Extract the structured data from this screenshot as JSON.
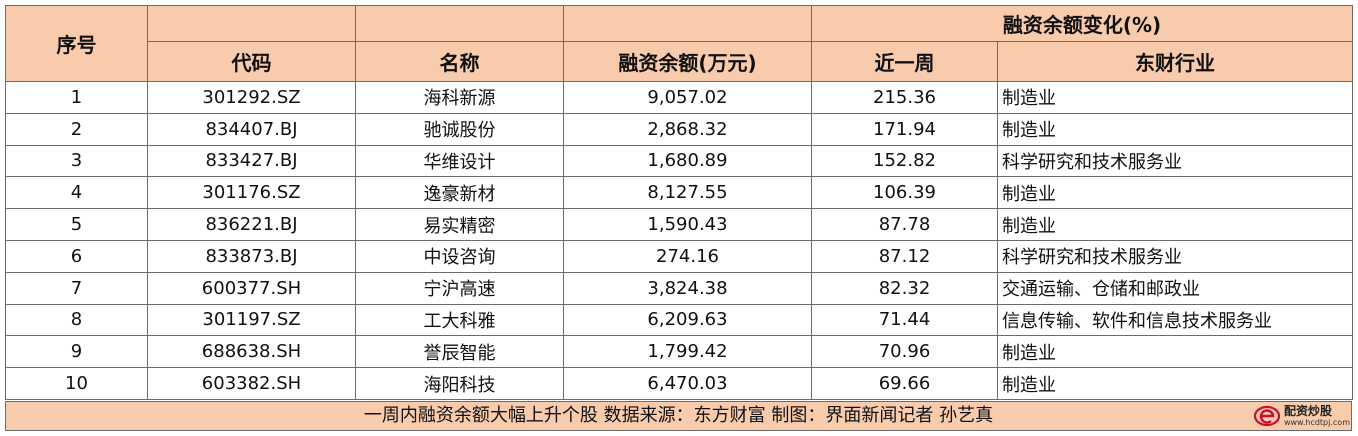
{
  "header": {
    "seq": "序号",
    "change_group": "融资余额变化(%)",
    "code": "代码",
    "name": "名称",
    "balance": "融资余额(万元)",
    "week": "近一周",
    "industry": "东财行业"
  },
  "rows": [
    {
      "seq": "1",
      "code": "301292.SZ",
      "name": "海科新源",
      "balance": "9,057.02",
      "week": "215.36",
      "industry": "制造业"
    },
    {
      "seq": "2",
      "code": "834407.BJ",
      "name": "驰诚股份",
      "balance": "2,868.32",
      "week": "171.94",
      "industry": "制造业"
    },
    {
      "seq": "3",
      "code": "833427.BJ",
      "name": "华维设计",
      "balance": "1,680.89",
      "week": "152.82",
      "industry": "科学研究和技术服务业"
    },
    {
      "seq": "4",
      "code": "301176.SZ",
      "name": "逸豪新材",
      "balance": "8,127.55",
      "week": "106.39",
      "industry": "制造业"
    },
    {
      "seq": "5",
      "code": "836221.BJ",
      "name": "易实精密",
      "balance": "1,590.43",
      "week": "87.78",
      "industry": "制造业"
    },
    {
      "seq": "6",
      "code": "833873.BJ",
      "name": "中设咨询",
      "balance": "274.16",
      "week": "87.12",
      "industry": "科学研究和技术服务业"
    },
    {
      "seq": "7",
      "code": "600377.SH",
      "name": "宁沪高速",
      "balance": "3,824.38",
      "week": "82.32",
      "industry": "交通运输、仓储和邮政业"
    },
    {
      "seq": "8",
      "code": "301197.SZ",
      "name": "工大科雅",
      "balance": "6,209.63",
      "week": "71.44",
      "industry": "信息传输、软件和信息技术服务业"
    },
    {
      "seq": "9",
      "code": "688638.SH",
      "name": "誉辰智能",
      "balance": "1,799.42",
      "week": "70.96",
      "industry": "制造业"
    },
    {
      "seq": "10",
      "code": "603382.SH",
      "name": "海阳科技",
      "balance": "6,470.03",
      "week": "69.66",
      "industry": "制造业"
    }
  ],
  "footer": {
    "caption": "一周内融资余额大幅上升个股 数据来源：东方财富 制图：界面新闻记者 孙艺真"
  },
  "watermark": {
    "name": "配资炒股",
    "url": "www.hcdtpj.com",
    "color": "#c8102e"
  },
  "colors": {
    "header_bg": "#f8cbad",
    "border": "#6b6b6b"
  }
}
